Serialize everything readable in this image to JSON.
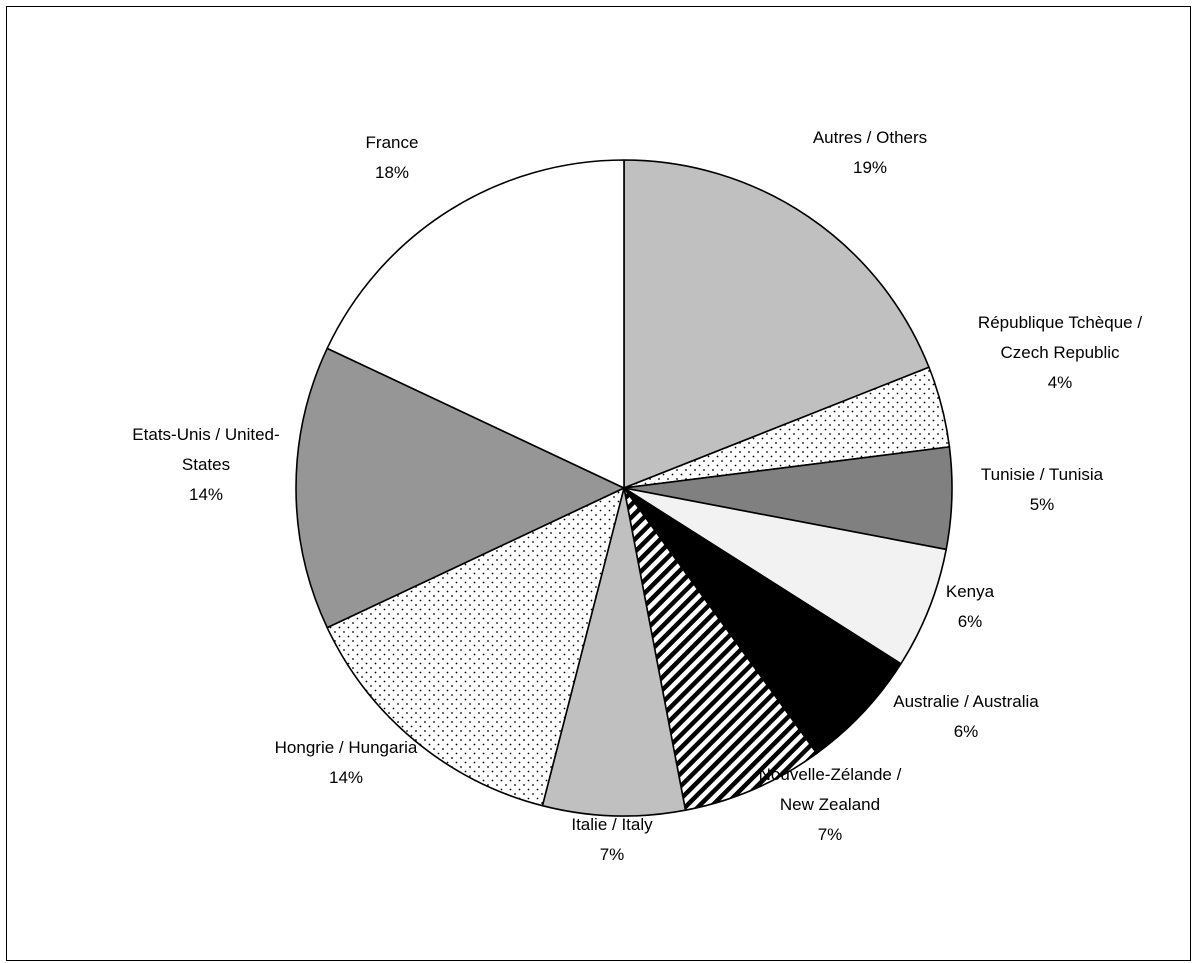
{
  "chart_data": {
    "type": "pie",
    "title": "",
    "slices": [
      {
        "label_lines": [
          "Autres / Others"
        ],
        "pct_label": "19%",
        "value": 19,
        "fill": "#c0c0c0",
        "pattern": "solid"
      },
      {
        "label_lines": [
          "République Tchèque /",
          "Czech Republic"
        ],
        "pct_label": "4%",
        "value": 4,
        "fill": "#ffffff",
        "pattern": "dots"
      },
      {
        "label_lines": [
          "Tunisie / Tunisia"
        ],
        "pct_label": "5%",
        "value": 5,
        "fill": "#808080",
        "pattern": "solid"
      },
      {
        "label_lines": [
          "Kenya"
        ],
        "pct_label": "6%",
        "value": 6,
        "fill": "#f2f2f2",
        "pattern": "solid"
      },
      {
        "label_lines": [
          "Australie / Australia"
        ],
        "pct_label": "6%",
        "value": 6,
        "fill": "#000000",
        "pattern": "solid"
      },
      {
        "label_lines": [
          "Nouvelle-Zélande /",
          "New Zealand"
        ],
        "pct_label": "7%",
        "value": 7,
        "fill": "#ffffff",
        "pattern": "diagonal-stripes"
      },
      {
        "label_lines": [
          "Italie / Italy"
        ],
        "pct_label": "7%",
        "value": 7,
        "fill": "#c0c0c0",
        "pattern": "solid"
      },
      {
        "label_lines": [
          "Hongrie / Hungaria"
        ],
        "pct_label": "14%",
        "value": 14,
        "fill": "#ffffff",
        "pattern": "dots"
      },
      {
        "label_lines": [
          "Etats-Unis / United-",
          "States"
        ],
        "pct_label": "14%",
        "value": 14,
        "fill": "#969696",
        "pattern": "solid"
      },
      {
        "label_lines": [
          "France"
        ],
        "pct_label": "18%",
        "value": 18,
        "fill": "#ffffff",
        "pattern": "solid"
      }
    ],
    "start_angle": "12 o'clock",
    "direction": "clockwise",
    "legend": "none",
    "data_labels": "outside, category name and percentage"
  }
}
